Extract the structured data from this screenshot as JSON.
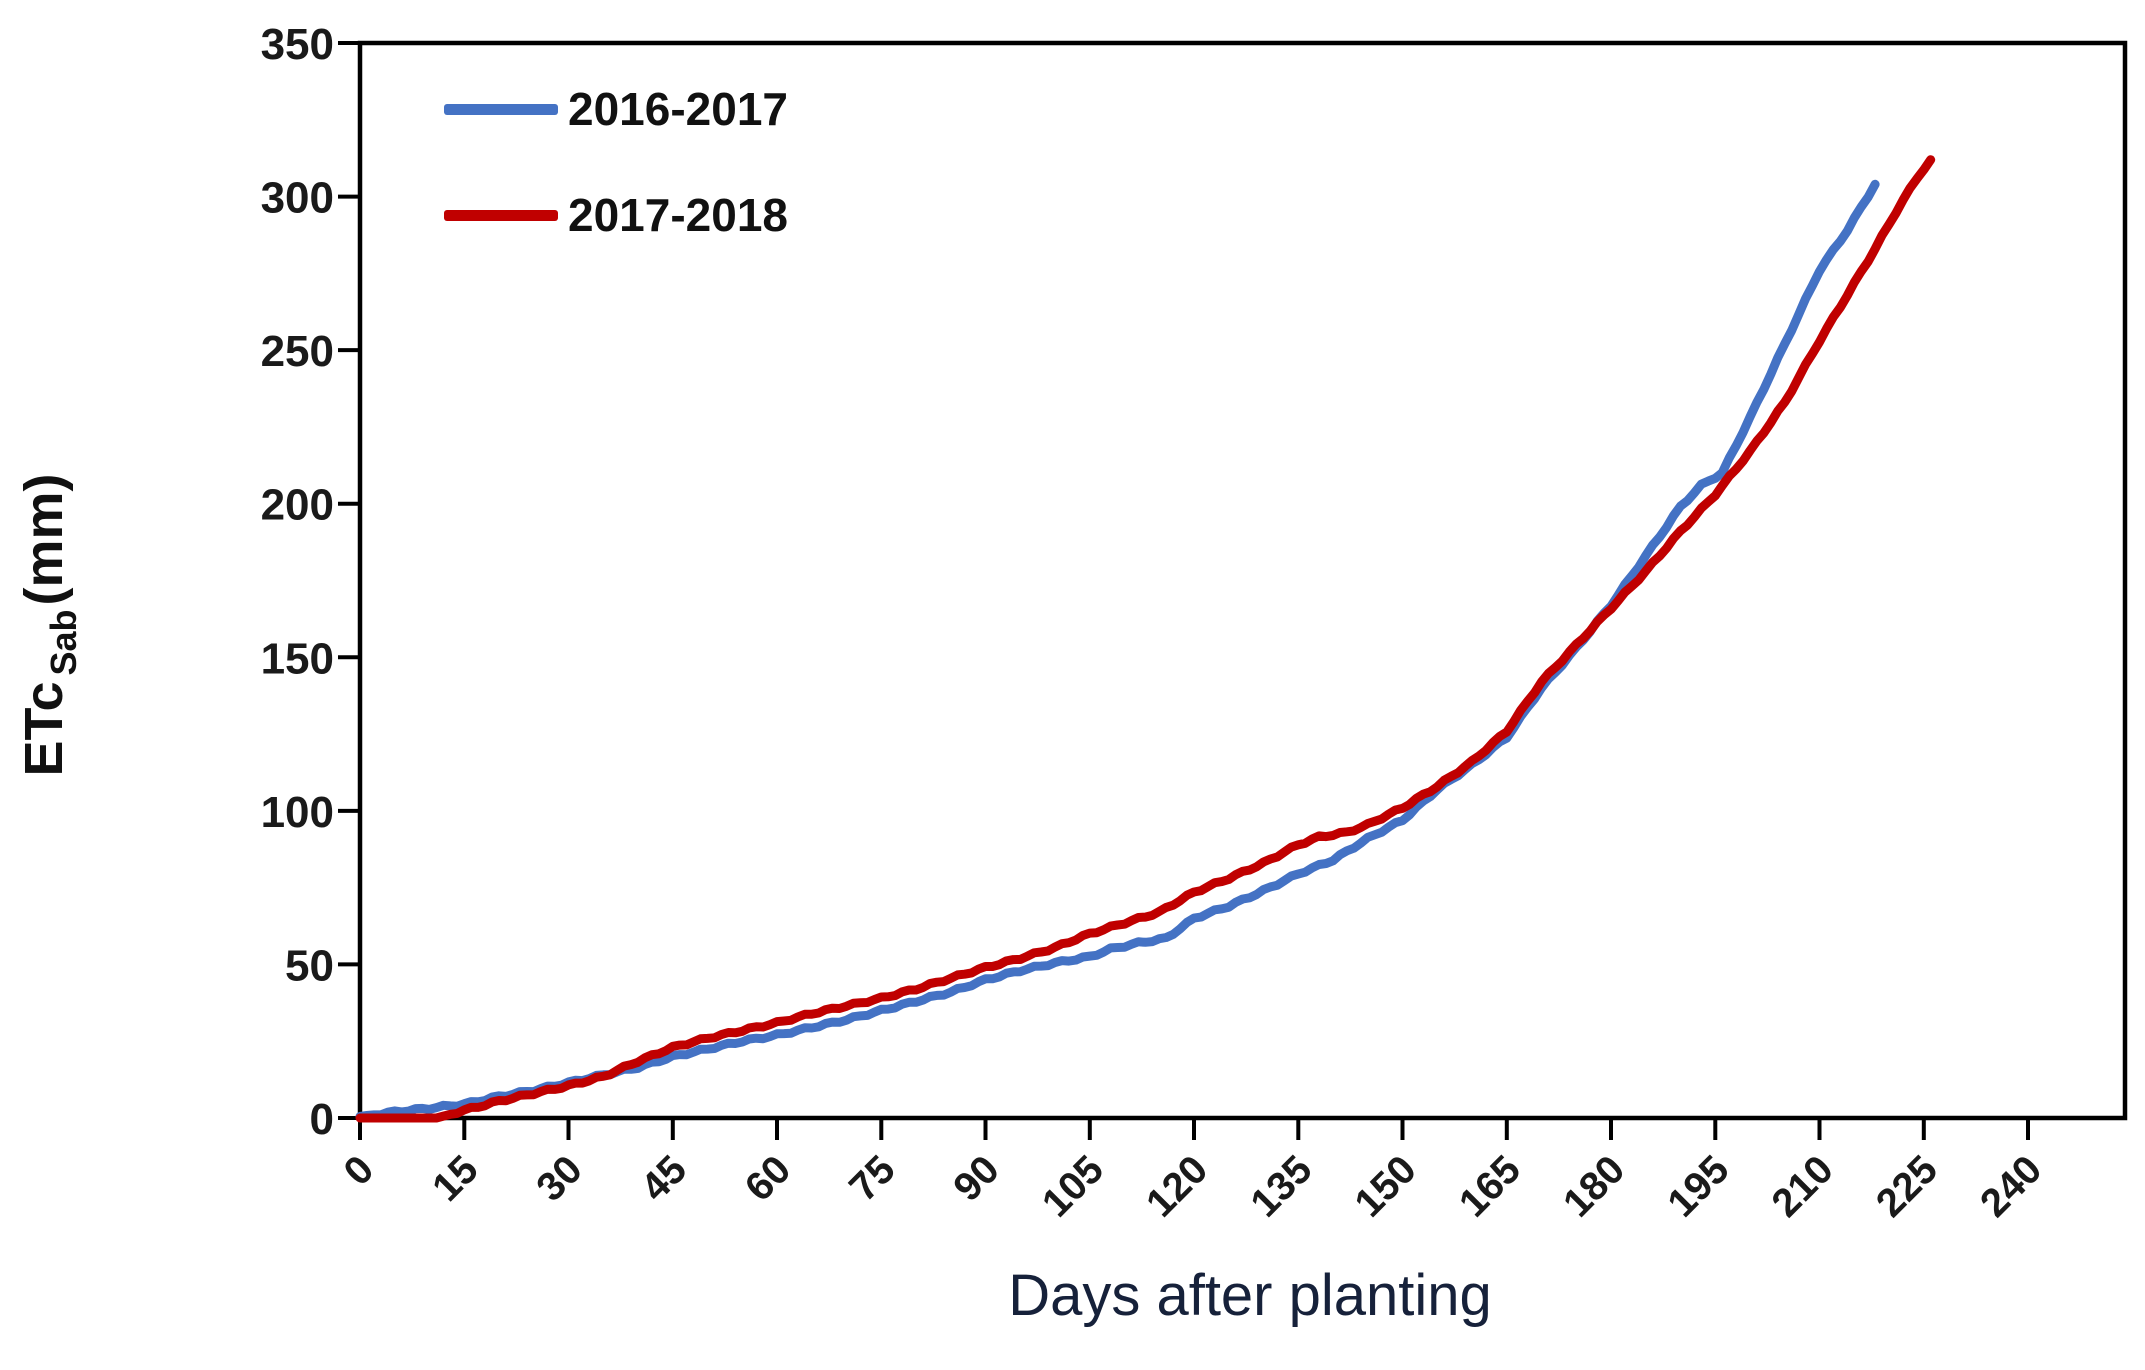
{
  "figure": {
    "background": "#ffffff",
    "border_color": "#000000"
  },
  "chart_data": {
    "type": "line",
    "title": "",
    "xlabel": "Days after planting",
    "ylabel": "ETc Sab (mm)",
    "ylabel_parts": {
      "main": "ETc",
      "sub": "Sab",
      "unit": "(mm)"
    },
    "xlim": [
      0,
      254
    ],
    "ylim": [
      0,
      350
    ],
    "grid": false,
    "legend_position": "inside top-left",
    "x_ticks": [
      0,
      15,
      30,
      45,
      60,
      75,
      90,
      105,
      120,
      135,
      150,
      165,
      180,
      195,
      210,
      225,
      240
    ],
    "x_tick_labels": [
      "0",
      "15",
      "30",
      "45",
      "60",
      "75",
      "90",
      "105",
      "120",
      "135",
      "150",
      "165",
      "180",
      "195",
      "210",
      "225",
      "240"
    ],
    "y_ticks": [
      0,
      50,
      100,
      150,
      200,
      250,
      300,
      350
    ],
    "y_tick_labels": [
      "0",
      "50",
      "100",
      "150",
      "200",
      "250",
      "300",
      "350"
    ],
    "series": [
      {
        "name": "2016-2017",
        "color": "#4472C4",
        "points": [
          [
            0,
            0.5
          ],
          [
            5,
            2
          ],
          [
            10,
            3.2
          ],
          [
            15,
            4.5
          ],
          [
            20,
            7
          ],
          [
            25,
            9
          ],
          [
            30,
            11.5
          ],
          [
            35,
            14
          ],
          [
            40,
            16.5
          ],
          [
            45,
            20
          ],
          [
            50,
            22.5
          ],
          [
            55,
            25
          ],
          [
            60,
            27
          ],
          [
            65,
            29.5
          ],
          [
            70,
            32
          ],
          [
            75,
            35
          ],
          [
            80,
            38
          ],
          [
            85,
            41
          ],
          [
            90,
            45
          ],
          [
            95,
            48
          ],
          [
            100,
            50.5
          ],
          [
            105,
            52.5
          ],
          [
            108,
            55
          ],
          [
            112,
            57
          ],
          [
            116,
            58.5
          ],
          [
            120,
            65
          ],
          [
            125,
            69
          ],
          [
            130,
            74
          ],
          [
            135,
            79.5
          ],
          [
            140,
            84
          ],
          [
            145,
            91
          ],
          [
            150,
            97
          ],
          [
            155,
            107
          ],
          [
            160,
            115
          ],
          [
            165,
            124
          ],
          [
            170,
            140
          ],
          [
            175,
            153
          ],
          [
            180,
            167
          ],
          [
            185,
            183
          ],
          [
            190,
            199
          ],
          [
            193,
            206
          ],
          [
            196,
            210
          ],
          [
            200,
            228
          ],
          [
            205,
            252
          ],
          [
            210,
            276
          ],
          [
            214,
            289
          ],
          [
            218,
            304
          ]
        ]
      },
      {
        "name": "2017-2018",
        "color": "#C00000",
        "points": [
          [
            0,
            0
          ],
          [
            11,
            0
          ],
          [
            15,
            2.5
          ],
          [
            20,
            5.5
          ],
          [
            25,
            8
          ],
          [
            30,
            10.5
          ],
          [
            35,
            13.5
          ],
          [
            40,
            18.5
          ],
          [
            45,
            23
          ],
          [
            50,
            26
          ],
          [
            55,
            28.5
          ],
          [
            60,
            31
          ],
          [
            65,
            34
          ],
          [
            70,
            36.5
          ],
          [
            75,
            39
          ],
          [
            80,
            42
          ],
          [
            85,
            45.5
          ],
          [
            90,
            49
          ],
          [
            95,
            52
          ],
          [
            100,
            55.5
          ],
          [
            105,
            60
          ],
          [
            110,
            63.5
          ],
          [
            115,
            67
          ],
          [
            120,
            73.5
          ],
          [
            125,
            78
          ],
          [
            130,
            83
          ],
          [
            135,
            89
          ],
          [
            138,
            91.5
          ],
          [
            142,
            93
          ],
          [
            145,
            95.5
          ],
          [
            150,
            101
          ],
          [
            155,
            108
          ],
          [
            160,
            116
          ],
          [
            165,
            126
          ],
          [
            170,
            142
          ],
          [
            175,
            154
          ],
          [
            180,
            166
          ],
          [
            185,
            178
          ],
          [
            190,
            191
          ],
          [
            195,
            203
          ],
          [
            200,
            217
          ],
          [
            205,
            233
          ],
          [
            210,
            253
          ],
          [
            214,
            268
          ],
          [
            218,
            283
          ],
          [
            221,
            295
          ],
          [
            224,
            306
          ],
          [
            226,
            312
          ]
        ]
      }
    ]
  }
}
